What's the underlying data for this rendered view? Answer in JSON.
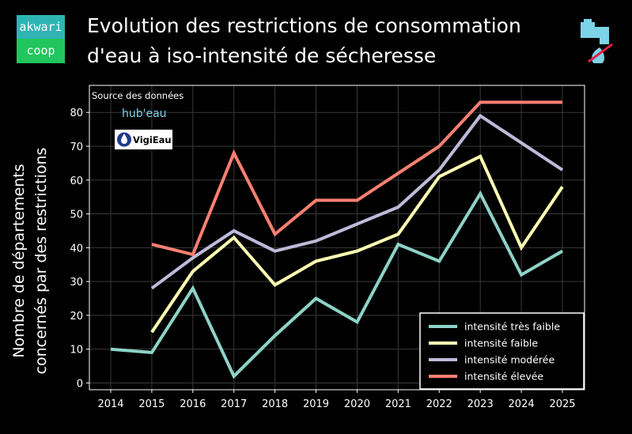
{
  "brand": {
    "line1": "akwari",
    "line2": "coop"
  },
  "title": {
    "line1": "Evolution des restrictions de consommation",
    "line2": "d'eau à iso-intensité de sécheresse"
  },
  "icons": {
    "logo": "brand-logo",
    "tap": "water-tap-no-drink-icon"
  },
  "source": {
    "label": "Source des données",
    "logo1": "hub'eau",
    "logo2": "VigiEau"
  },
  "chart_data": {
    "type": "line",
    "title": "Evolution des restrictions de consommation d'eau à iso-intensité de sécheresse",
    "ylabel_line1": "Nombre de départements",
    "ylabel_line2": "concernés par des restrictions",
    "xlabel": "",
    "categories": [
      "2014",
      "2015",
      "2016",
      "2017",
      "2018",
      "2019",
      "2020",
      "2021",
      "2022",
      "2023",
      "2024",
      "2025"
    ],
    "x": [
      2014,
      2015,
      2016,
      2017,
      2018,
      2019,
      2020,
      2021,
      2022,
      2023,
      2024,
      2025
    ],
    "ylim": [
      -2,
      88
    ],
    "yticks": [
      0,
      10,
      20,
      30,
      40,
      50,
      60,
      70,
      80
    ],
    "grid": true,
    "legend_position": "bottom-right",
    "series": [
      {
        "name": "intensité très faible",
        "color": "#8dd3c7",
        "values": [
          10,
          9,
          28,
          2,
          14,
          25,
          18,
          41,
          36,
          56,
          32,
          39
        ]
      },
      {
        "name": "intensité faible",
        "color": "#ffffb3",
        "values": [
          null,
          15,
          33,
          43,
          29,
          36,
          39,
          44,
          61,
          67,
          40,
          58
        ]
      },
      {
        "name": "intensité modérée",
        "color": "#bebada",
        "values": [
          null,
          28,
          37,
          45,
          39,
          42,
          47,
          52,
          63,
          79,
          71,
          63
        ]
      },
      {
        "name": "intensité élevée",
        "color": "#fb8072",
        "values": [
          null,
          41,
          38,
          68,
          44,
          54,
          54,
          62,
          70,
          83,
          83,
          83
        ]
      }
    ]
  }
}
